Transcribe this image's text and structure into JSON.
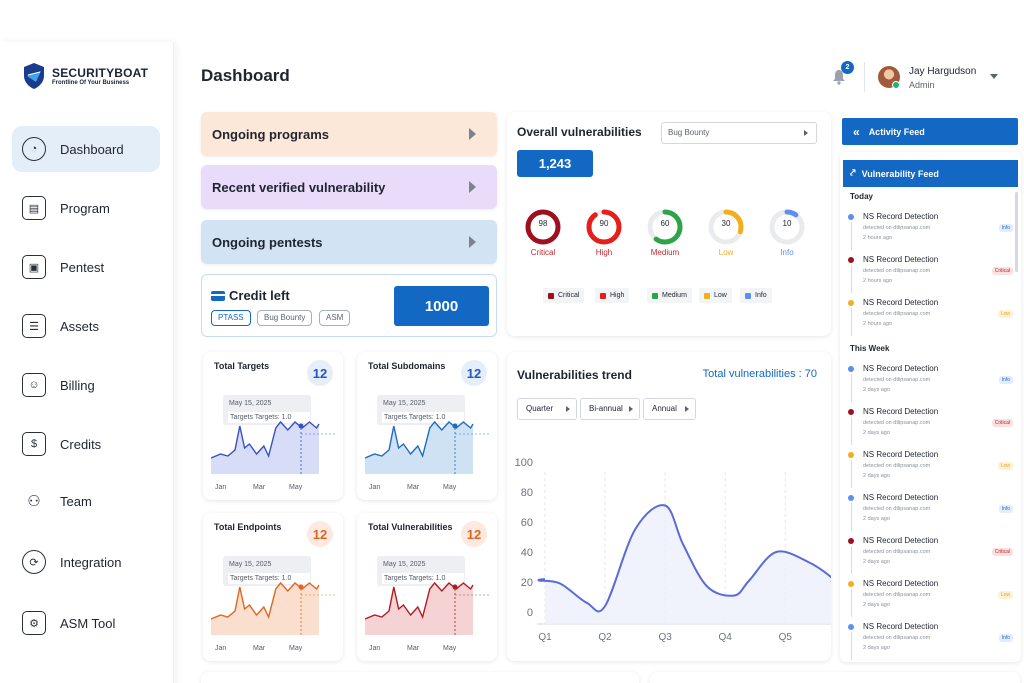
{
  "brand": {
    "name": "SECURITYBOAT",
    "tagline": "Frontline Of Your Business"
  },
  "sidebar": {
    "items": [
      {
        "label": "Dashboard",
        "icon": "pie-chart-icon",
        "active": true
      },
      {
        "label": "Program",
        "icon": "document-icon"
      },
      {
        "label": "Pentest",
        "icon": "file-lock-icon"
      },
      {
        "label": "Assets",
        "icon": "list-doc-icon"
      },
      {
        "label": "Billing",
        "icon": "id-card-icon"
      },
      {
        "label": "Credits",
        "icon": "credits-icon"
      },
      {
        "label": "Team",
        "icon": "team-icon"
      },
      {
        "label": "Integration",
        "icon": "integration-icon"
      },
      {
        "label": "ASM Tool",
        "icon": "gear-box-icon"
      }
    ]
  },
  "header": {
    "title": "Dashboard",
    "notification_count": "2",
    "user_name": "Jay Hargudson",
    "user_role": "Admin"
  },
  "programs": [
    {
      "label": "Ongoing programs"
    },
    {
      "label": "Recent verified vulnerability"
    },
    {
      "label": "Ongoing pentests"
    }
  ],
  "credit": {
    "title": "Credit left",
    "value": "1000",
    "chips": [
      "PTASS",
      "Bug Bounty",
      "ASM"
    ]
  },
  "mini_cards": [
    {
      "title": "Total Targets",
      "value": "12",
      "tooltip_date": "May 15, 2025",
      "tooltip_text": "Targets Targets: 1.0",
      "axis": [
        "Jan",
        "Mar",
        "May"
      ],
      "color": "#3550c8",
      "fill": "#c9d2f4"
    },
    {
      "title": "Total Subdomains",
      "value": "12",
      "tooltip_date": "May 15, 2025",
      "tooltip_text": "Targets Targets: 1.0",
      "axis": [
        "Jan",
        "Mar",
        "May"
      ],
      "color": "#1f6bbf",
      "fill": "#bfd8ef"
    },
    {
      "title": "Total Endpoints",
      "value": "12",
      "tooltip_date": "May 15, 2025",
      "tooltip_text": "Targets Targets: 1.0",
      "axis": [
        "Jan",
        "Mar",
        "May"
      ],
      "color": "#e0661f",
      "fill": "#f8d3bd"
    },
    {
      "title": "Total Vulnerabilities",
      "value": "12",
      "tooltip_date": "May 15, 2025",
      "tooltip_text": "Targets Targets: 1.0",
      "axis": [
        "Jan",
        "Mar",
        "May"
      ],
      "color": "#b01c24",
      "fill": "#f1c3c4"
    }
  ],
  "overall": {
    "title": "Overall vulnerabilities",
    "filter": "Bug Bounty",
    "total": "1,243",
    "severities": [
      {
        "value": "98",
        "label": "Critical",
        "color": "#9e1020",
        "fraction": 0.98
      },
      {
        "value": "90",
        "label": "High",
        "color": "#e5201c",
        "fraction": 0.9
      },
      {
        "value": "60",
        "label": "Medium",
        "color": "#2fa34a",
        "fraction": 0.6
      },
      {
        "value": "30",
        "label": "Low",
        "color": "#f4ae1c",
        "fraction": 0.3
      },
      {
        "value": "10",
        "label": "Info",
        "color": "#5c8ff0",
        "fraction": 0.1
      }
    ],
    "legend": [
      "Critical",
      "High",
      "Medium",
      "Low",
      "Info"
    ]
  },
  "trend": {
    "title": "Vulnerabilities trend",
    "total_label": "Total vulnerabilities : 70",
    "periods": [
      "Quarter",
      "Bi-annual",
      "Annual"
    ]
  },
  "chart_data": {
    "type": "line",
    "x": [
      "Q1",
      "Q2",
      "Q3",
      "Q4",
      "Q5"
    ],
    "x_points": [
      0.9,
      1.25,
      1.7,
      2.0,
      2.5,
      3.0,
      3.3,
      3.7,
      4.15,
      4.4,
      4.85,
      5.4,
      5.8
    ],
    "y_points": [
      21,
      19,
      6,
      4,
      55,
      71,
      45,
      17,
      11,
      21,
      40,
      33,
      22
    ],
    "ylim": [
      0,
      100
    ],
    "yticks": [
      0,
      20,
      40,
      60,
      80,
      100
    ],
    "color": "#5b6bd6"
  },
  "feed": {
    "activity_title": "Activity Feed",
    "vuln_title": "Vulnerability Feed",
    "sections": [
      {
        "label": "Today",
        "items": [
          {
            "title": "NS Record Detection",
            "source": "detected on dtlipsanap.com",
            "time": "2 hours ago",
            "tag": "Info",
            "color": "#5c8ff0"
          },
          {
            "title": "NS Record Detection",
            "source": "detected on dtlipsanap.com",
            "time": "2 hours ago",
            "tag": "Critical",
            "color": "#9e1020"
          },
          {
            "title": "NS Record Detection",
            "source": "detected on dtlipsanap.com",
            "time": "2 hours ago",
            "tag": "Low",
            "color": "#f4ae1c"
          }
        ]
      },
      {
        "label": "This Week",
        "items": [
          {
            "title": "NS Record Detection",
            "source": "detected on dtlipsanap.com",
            "time": "2 days ago",
            "tag": "Info",
            "color": "#5c8ff0"
          },
          {
            "title": "NS Record Detection",
            "source": "detected on dtlipsanap.com",
            "time": "2 days ago",
            "tag": "Critical",
            "color": "#9e1020"
          },
          {
            "title": "NS Record Detection",
            "source": "detected on dtlipsanap.com",
            "time": "2 days ago",
            "tag": "Low",
            "color": "#f4ae1c"
          },
          {
            "title": "NS Record Detection",
            "source": "detected on dtlipsanap.com",
            "time": "2 days ago",
            "tag": "Info",
            "color": "#5c8ff0"
          },
          {
            "title": "NS Record Detection",
            "source": "detected on dtlipsanap.com",
            "time": "2 days ago",
            "tag": "Critical",
            "color": "#9e1020"
          },
          {
            "title": "NS Record Detection",
            "source": "detected on dtlipsanap.com",
            "time": "2 days ago",
            "tag": "Low",
            "color": "#f4ae1c"
          },
          {
            "title": "NS Record Detection",
            "source": "detected on dtlipsanap.com",
            "time": "2 days ago",
            "tag": "Info",
            "color": "#5c8ff0"
          }
        ]
      }
    ]
  }
}
